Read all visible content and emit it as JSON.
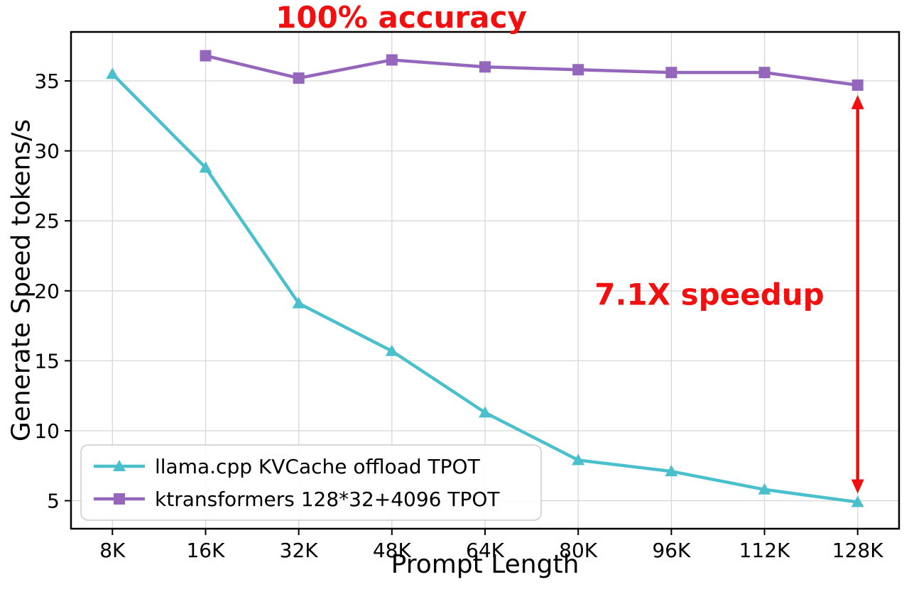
{
  "chart_data": {
    "type": "line",
    "title": "100% accuracy",
    "title_color": "#f10f0f",
    "xlabel": "Prompt Length",
    "ylabel": "Generate Speed tokens/s",
    "categories": [
      "8K",
      "16K",
      "32K",
      "48K",
      "64K",
      "80K",
      "96K",
      "112K",
      "128K"
    ],
    "yticks": [
      5,
      10,
      15,
      20,
      25,
      30,
      35
    ],
    "ylim": [
      3,
      38.5
    ],
    "grid": true,
    "legend_position": "lower left",
    "series": [
      {
        "name": "llama.cpp KVCache offload TPOT",
        "color": "#4bc0cd",
        "marker": "triangle",
        "values": [
          35.5,
          28.8,
          19.1,
          15.7,
          11.3,
          7.9,
          7.1,
          5.8,
          4.9
        ]
      },
      {
        "name": "ktransformers 128*32+4096 TPOT",
        "color": "#9467bd",
        "marker": "square",
        "values": [
          null,
          36.8,
          35.2,
          36.5,
          36.0,
          35.8,
          35.6,
          35.6,
          34.7
        ]
      }
    ],
    "annotation": {
      "text": "7.1X speedup",
      "color": "#f10f0f",
      "arrow": {
        "category": "128K",
        "from_value": 34.7,
        "to_value": 4.9,
        "color": "#f10f0f"
      }
    },
    "axis_color": "#000000",
    "grid_color": "#d7d7d7"
  }
}
